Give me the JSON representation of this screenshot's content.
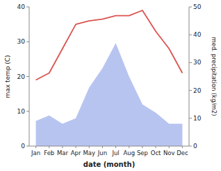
{
  "chart_data": {
    "type": "line",
    "categories": [
      "Jan",
      "Feb",
      "Mar",
      "Apr",
      "May",
      "Jun",
      "Jul",
      "Aug",
      "Sep",
      "Oct",
      "Nov",
      "Dec"
    ],
    "series": [
      {
        "type": "area",
        "axis": "y2",
        "color": "#b8c4f0",
        "values": [
          9,
          11,
          8,
          10,
          21,
          28,
          37,
          25,
          15,
          12,
          8,
          8
        ]
      },
      {
        "type": "line",
        "color": "#d9534f",
        "values": [
          19,
          21,
          28,
          35,
          36,
          36.5,
          37.5,
          37.5,
          39,
          33,
          28,
          21
        ]
      }
    ],
    "xlabel": "date (month)",
    "ylabel": "max temp (C)",
    "y2label": "med. precipitation (kg/m2)",
    "ylim": [
      0,
      40
    ],
    "yticks": [
      0,
      10,
      20,
      30,
      40
    ],
    "y2lim": [
      0,
      50
    ],
    "y2ticks": [
      0,
      10,
      20,
      30,
      40,
      50
    ],
    "grid": false
  }
}
